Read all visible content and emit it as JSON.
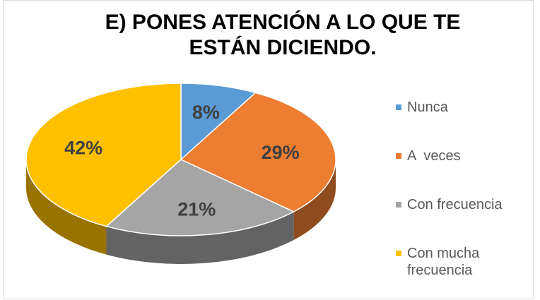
{
  "chart_data": {
    "type": "pie",
    "title": "E) PONES ATENCIÓN A LO QUE TE ESTÁN DICIENDO.",
    "categories": [
      "Nunca",
      "A  veces",
      "Con frecuencia",
      "Con mucha frecuencia"
    ],
    "values": [
      8,
      29,
      21,
      42
    ],
    "value_labels": [
      "8%",
      "29%",
      "21%",
      "42%"
    ],
    "colors": [
      "#5b9bd5",
      "#ed7d31",
      "#a5a5a5",
      "#ffc000"
    ],
    "legend": "right"
  }
}
